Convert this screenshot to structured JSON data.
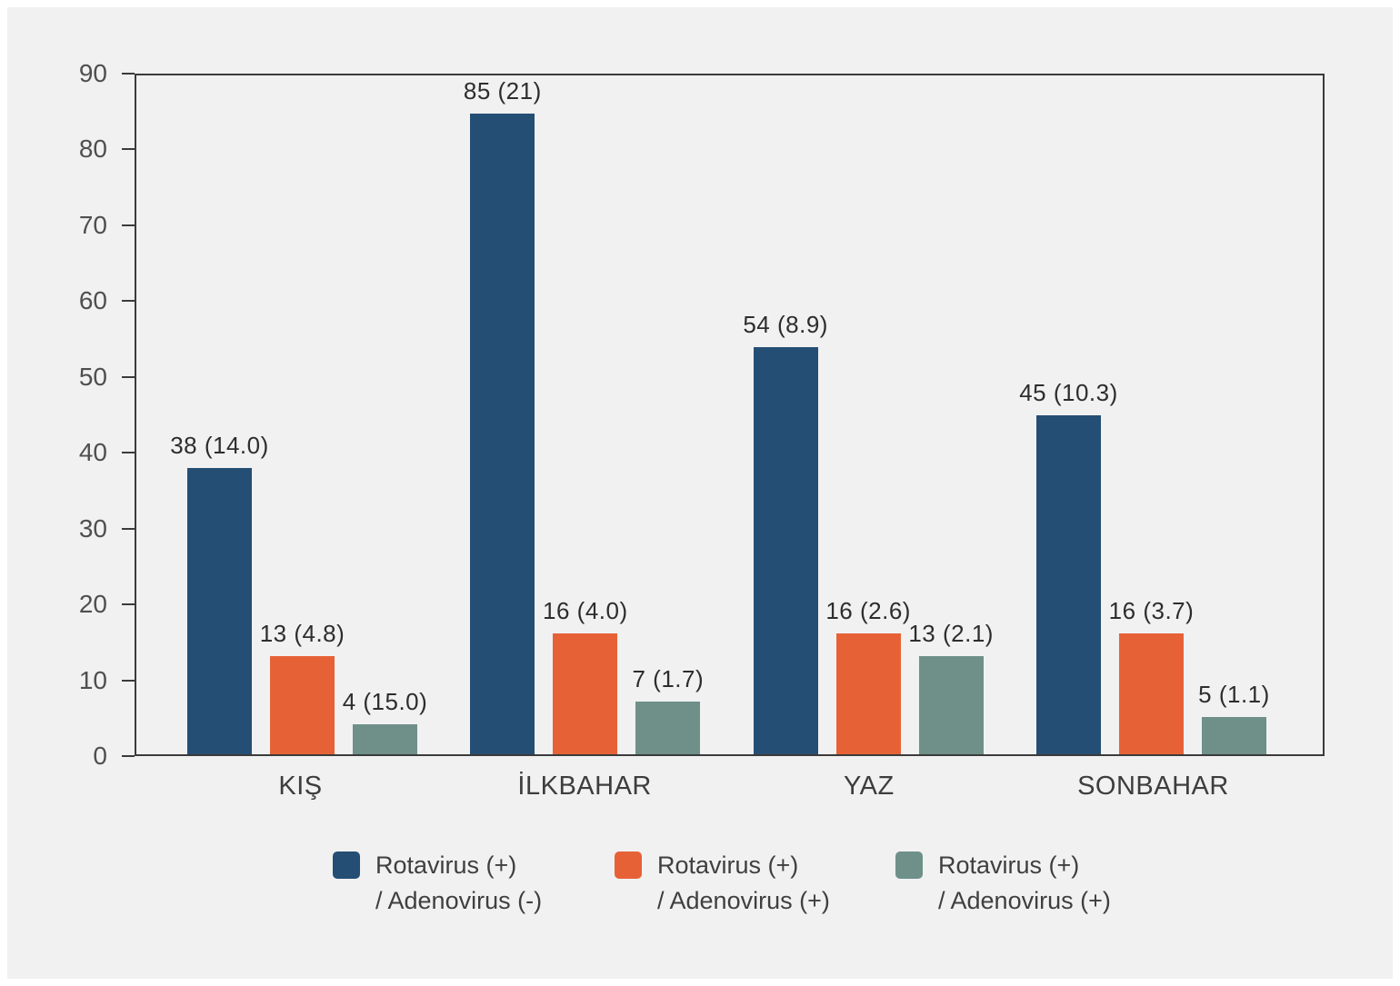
{
  "chart_data": {
    "type": "bar",
    "title": "",
    "xlabel": "",
    "ylabel": "",
    "categories": [
      "KIŞ",
      "İLKBAHAR",
      "YAZ",
      "SONBAHAR"
    ],
    "series": [
      {
        "name": "Rotavirus (+) / Adenovirus (-)",
        "legend_lines": [
          "Rotavirus (+)",
          "/ Adenovirus (-)"
        ],
        "color": "#254E74",
        "values": [
          38,
          85,
          54,
          45
        ],
        "data_labels": [
          "38 (14.0)",
          "85 (21)",
          "54 (8.9)",
          "45 (10.3)"
        ]
      },
      {
        "name": "Rotavirus (+) / Adenovirus (+)",
        "legend_lines": [
          "Rotavirus (+)",
          "/ Adenovirus (+)"
        ],
        "color": "#E66236",
        "values": [
          13,
          16,
          16,
          16
        ],
        "data_labels": [
          "13 (4.8)",
          "16 (4.0)",
          "16 (2.6)",
          "16 (3.7)"
        ]
      },
      {
        "name": "Rotavirus (+) / Adenovirus (+)",
        "legend_lines": [
          "Rotavirus (+)",
          "/ Adenovirus (+)"
        ],
        "color": "#6E9089",
        "values": [
          4,
          7,
          13,
          5
        ],
        "data_labels": [
          "4 (15.0)",
          "7 (1.7)",
          "13 (2.1)",
          "5 (1.1)"
        ]
      }
    ],
    "y_axis": {
      "min": 0,
      "max": 90,
      "step": 10,
      "tick_labels": [
        "0",
        "10",
        "20",
        "30",
        "40",
        "50",
        "60",
        "70",
        "80",
        "90"
      ]
    },
    "grid": false,
    "legend_position": "bottom"
  },
  "colors": {
    "background": "#F1F1F2",
    "frame": "#FFFFFF",
    "axis": "#3B3B3B",
    "tick_text": "#4F4F4F",
    "bar_label_text": "#2D2D2D",
    "category_text": "#3D3D3D",
    "legend_text": "#3F3F3F"
  }
}
